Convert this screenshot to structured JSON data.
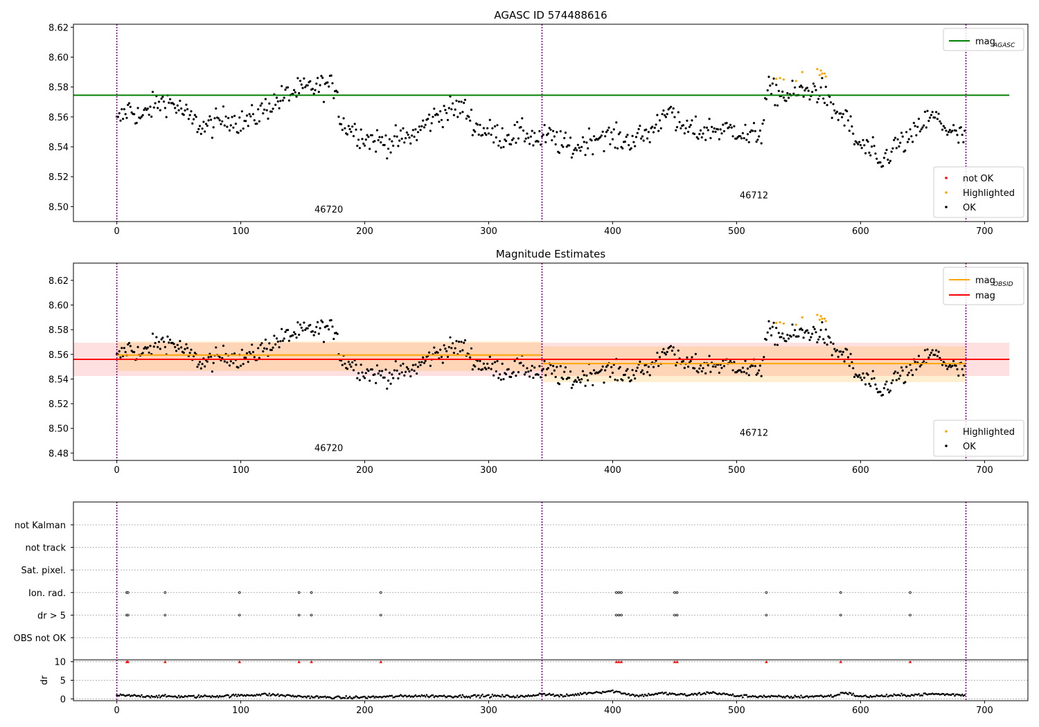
{
  "figure": {
    "background": "#ffffff",
    "frame_color": "#000000"
  },
  "colors": {
    "ok": "#000000",
    "highlighted": "#ffa500",
    "not_ok": "#ff0000",
    "mag_agasc": "#008000",
    "mag_obsid": "#ffa500",
    "mag": "#ff0000",
    "obsid_divider": "#800080",
    "flag_grid": "#b0b0b0",
    "obsid_band": "#ffa500",
    "mag_band": "#ff0000"
  },
  "obsid_boundaries": [
    0,
    343,
    685
  ],
  "chart_data": [
    {
      "type": "scatter",
      "title": "AGASC ID 574488616",
      "xlim": [
        -35,
        735
      ],
      "ylim": [
        8.49,
        8.622
      ],
      "xticks": [
        0,
        100,
        200,
        300,
        400,
        500,
        600,
        700
      ],
      "yticks": [
        8.5,
        8.52,
        8.54,
        8.56,
        8.58,
        8.6,
        8.62
      ],
      "obsids": [
        {
          "label": "46720",
          "x": 171,
          "y": 8.496
        },
        {
          "label": "46712",
          "x": 514,
          "y": 8.5055
        }
      ],
      "lines": [
        {
          "name": "mag",
          "sub": "AGASC",
          "color": "#008000",
          "x": [
            -35,
            720
          ],
          "y": [
            8.5745,
            8.5745
          ]
        }
      ],
      "legend_lines": [
        {
          "name": "mag",
          "sub": "AGASC",
          "color": "#008000"
        }
      ],
      "legend_points": [
        {
          "name": "not OK",
          "color": "#ff0000"
        },
        {
          "name": "Highlighted",
          "color": "#ffa500"
        },
        {
          "name": "OK",
          "color": "#000000"
        }
      ],
      "legend_lines_position": "upper right",
      "legend_points_position": "lower right"
    },
    {
      "type": "scatter",
      "title": "Magnitude Estimates",
      "xlim": [
        -35,
        735
      ],
      "ylim": [
        8.474,
        8.634
      ],
      "xticks": [
        0,
        100,
        200,
        300,
        400,
        500,
        600,
        700
      ],
      "yticks": [
        8.48,
        8.5,
        8.52,
        8.54,
        8.56,
        8.58,
        8.6,
        8.62
      ],
      "obsids": [
        {
          "label": "46720",
          "x": 171,
          "y": 8.4815
        },
        {
          "label": "46712",
          "x": 514,
          "y": 8.494
        }
      ],
      "bands": [
        {
          "color": "#ff0000",
          "opacity": 0.12,
          "x": [
            -35,
            720
          ],
          "y": [
            8.5425,
            8.5695
          ]
        },
        {
          "color": "#ffa500",
          "opacity": 0.18,
          "x": [
            0,
            343
          ],
          "y": [
            8.5465,
            8.5705
          ]
        },
        {
          "color": "#ffa500",
          "opacity": 0.18,
          "x": [
            343,
            685
          ],
          "y": [
            8.5375,
            8.5665
          ]
        }
      ],
      "lines": [
        {
          "name": "mag",
          "sub": "OBSID",
          "color": "#ffa500",
          "x": [
            0,
            343
          ],
          "y": [
            8.5595,
            8.5595
          ]
        },
        {
          "name": "mag",
          "sub": "OBSID",
          "color": "#ffa500",
          "x": [
            343,
            685
          ],
          "y": [
            8.5525,
            8.5525
          ]
        },
        {
          "name": "mag",
          "sub": "",
          "color": "#ff0000",
          "x": [
            -35,
            720
          ],
          "y": [
            8.556,
            8.556
          ]
        }
      ],
      "legend_lines": [
        {
          "name": "mag",
          "sub": "OBSID",
          "color": "#ffa500"
        },
        {
          "name": "mag",
          "sub": "",
          "color": "#ff0000"
        }
      ],
      "legend_points": [
        {
          "name": "Highlighted",
          "color": "#ffa500"
        },
        {
          "name": "OK",
          "color": "#000000"
        }
      ],
      "legend_lines_position": "upper right",
      "legend_points_position": "lower right"
    },
    {
      "type": "scatter",
      "title": "",
      "xlim": [
        -35,
        735
      ],
      "categories": [
        "not Kalman",
        "not track",
        "Sat. pixel.",
        "Ion. rad.",
        "dr > 5",
        "OBS not OK"
      ],
      "flags": [
        {
          "category": "Ion. rad.",
          "x": [
            8,
            9,
            39,
            99,
            147,
            157,
            213,
            403,
            405,
            407,
            450,
            452,
            524,
            584,
            640
          ]
        },
        {
          "category": "dr > 5",
          "x": [
            8,
            9,
            39,
            99,
            147,
            157,
            213,
            403,
            405,
            407,
            450,
            452,
            524,
            584,
            640
          ]
        }
      ]
    },
    {
      "type": "scatter",
      "title": "",
      "ylabel": "dr",
      "xlim": [
        -35,
        735
      ],
      "ylim": [
        -0.5,
        10.5
      ],
      "xticks": [
        0,
        100,
        200,
        300,
        400,
        500,
        600,
        700
      ],
      "yticks": [
        0,
        5,
        10
      ],
      "clipped_value": 10,
      "clipped_x": [
        8,
        9,
        39,
        99,
        147,
        157,
        213,
        403,
        405,
        407,
        450,
        452,
        524,
        584,
        640
      ],
      "dr_trend": [
        [
          0,
          0.9
        ],
        [
          30,
          0.7
        ],
        [
          60,
          0.6
        ],
        [
          90,
          0.8
        ],
        [
          120,
          1.2
        ],
        [
          150,
          0.6
        ],
        [
          180,
          0.3
        ],
        [
          210,
          0.5
        ],
        [
          240,
          0.8
        ],
        [
          270,
          0.7
        ],
        [
          300,
          0.8
        ],
        [
          330,
          0.6
        ],
        [
          343,
          1.4
        ],
        [
          360,
          0.7
        ],
        [
          380,
          1.6
        ],
        [
          400,
          2.1
        ],
        [
          420,
          0.8
        ],
        [
          440,
          1.5
        ],
        [
          460,
          1.0
        ],
        [
          480,
          1.7
        ],
        [
          500,
          0.8
        ],
        [
          540,
          0.5
        ],
        [
          580,
          0.8
        ],
        [
          586,
          1.8
        ],
        [
          600,
          0.6
        ],
        [
          630,
          0.9
        ],
        [
          660,
          1.3
        ],
        [
          685,
          1.0
        ]
      ]
    }
  ],
  "mag_trend": [
    [
      0,
      8.556
    ],
    [
      10,
      8.566
    ],
    [
      20,
      8.559
    ],
    [
      30,
      8.568
    ],
    [
      40,
      8.571
    ],
    [
      50,
      8.566
    ],
    [
      60,
      8.558
    ],
    [
      70,
      8.553
    ],
    [
      80,
      8.556
    ],
    [
      90,
      8.56
    ],
    [
      100,
      8.556
    ],
    [
      110,
      8.559
    ],
    [
      120,
      8.566
    ],
    [
      130,
      8.571
    ],
    [
      140,
      8.576
    ],
    [
      150,
      8.578
    ],
    [
      160,
      8.58
    ],
    [
      170,
      8.581
    ],
    [
      178,
      8.579
    ],
    [
      180,
      8.556
    ],
    [
      190,
      8.552
    ],
    [
      200,
      8.546
    ],
    [
      210,
      8.544
    ],
    [
      220,
      8.543
    ],
    [
      230,
      8.545
    ],
    [
      240,
      8.548
    ],
    [
      250,
      8.556
    ],
    [
      260,
      8.562
    ],
    [
      270,
      8.565
    ],
    [
      280,
      8.566
    ],
    [
      290,
      8.553
    ],
    [
      300,
      8.55
    ],
    [
      310,
      8.547
    ],
    [
      320,
      8.548
    ],
    [
      330,
      8.549
    ],
    [
      340,
      8.545
    ],
    [
      350,
      8.547
    ],
    [
      360,
      8.541
    ],
    [
      370,
      8.539
    ],
    [
      380,
      8.544
    ],
    [
      390,
      8.548
    ],
    [
      400,
      8.546
    ],
    [
      410,
      8.544
    ],
    [
      420,
      8.546
    ],
    [
      430,
      8.549
    ],
    [
      440,
      8.56
    ],
    [
      445,
      8.57
    ],
    [
      450,
      8.555
    ],
    [
      460,
      8.552
    ],
    [
      470,
      8.55
    ],
    [
      480,
      8.552
    ],
    [
      490,
      8.551
    ],
    [
      500,
      8.552
    ],
    [
      510,
      8.546
    ],
    [
      520,
      8.55
    ],
    [
      525,
      8.578
    ],
    [
      540,
      8.574
    ],
    [
      550,
      8.576
    ],
    [
      560,
      8.578
    ],
    [
      570,
      8.577
    ],
    [
      575,
      8.566
    ],
    [
      580,
      8.563
    ],
    [
      590,
      8.558
    ],
    [
      595,
      8.544
    ],
    [
      600,
      8.541
    ],
    [
      610,
      8.536
    ],
    [
      615,
      8.526
    ],
    [
      620,
      8.533
    ],
    [
      630,
      8.542
    ],
    [
      640,
      8.544
    ],
    [
      650,
      8.556
    ],
    [
      660,
      8.56
    ],
    [
      670,
      8.552
    ],
    [
      680,
      8.546
    ],
    [
      685,
      8.548
    ]
  ],
  "highlighted_points": [
    [
      532,
      8.5855
    ],
    [
      535,
      8.586
    ],
    [
      538,
      8.585
    ],
    [
      548,
      8.584
    ],
    [
      553,
      8.59
    ],
    [
      565,
      8.592
    ],
    [
      567,
      8.588
    ],
    [
      568,
      8.591
    ],
    [
      569,
      8.589
    ],
    [
      571,
      8.589
    ],
    [
      572,
      8.587
    ]
  ]
}
